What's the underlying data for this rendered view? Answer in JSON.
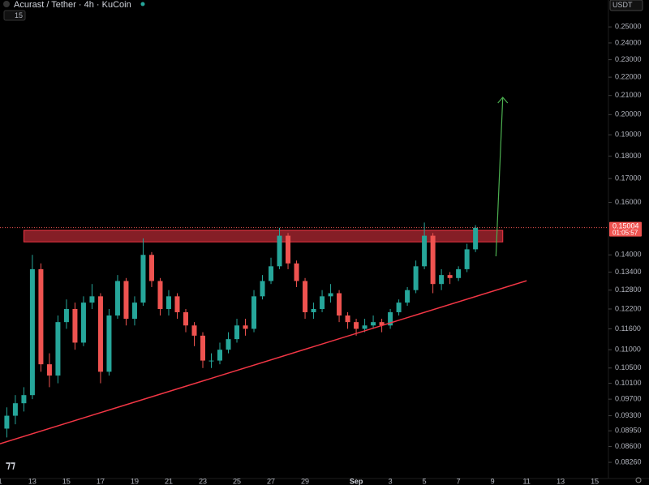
{
  "chart_data": {
    "type": "candlestick",
    "title": "Acurast / Tether · 4h · KuCoin",
    "indicator_count": "15",
    "currency_button": "USDT",
    "log_scale": true,
    "up_color": "#26a69a",
    "down_color": "#ef5350",
    "x": [
      0.5,
      1,
      1.5,
      2,
      2.5,
      3,
      3.5,
      4,
      4.5,
      5,
      5.5,
      6,
      6.5,
      7,
      7.5,
      8,
      8.5,
      9,
      9.5,
      10,
      10.5,
      11,
      11.5,
      12,
      12.5,
      13,
      13.5,
      14,
      14.5,
      15,
      15.5,
      16,
      16.5,
      17,
      17.5,
      18,
      18.5,
      19,
      19.5,
      20,
      20.5,
      21,
      21.5,
      22,
      22.5,
      23,
      23.5,
      24,
      24.5,
      25,
      25.5,
      26,
      26.5,
      27,
      27.5,
      28
    ],
    "open": [
      0.09,
      0.093,
      0.096,
      0.098,
      0.135,
      0.106,
      0.103,
      0.118,
      0.122,
      0.112,
      0.124,
      0.126,
      0.104,
      0.12,
      0.131,
      0.119,
      0.124,
      0.14,
      0.131,
      0.122,
      0.126,
      0.121,
      0.117,
      0.114,
      0.107,
      0.107,
      0.11,
      0.113,
      0.117,
      0.116,
      0.126,
      0.131,
      0.136,
      0.147,
      0.137,
      0.131,
      0.121,
      0.122,
      0.126,
      0.127,
      0.12,
      0.118,
      0.116,
      0.117,
      0.118,
      0.117,
      0.121,
      0.124,
      0.128,
      0.136,
      0.147,
      0.13,
      0.133,
      0.132,
      0.135,
      0.142
    ],
    "high": [
      0.095,
      0.098,
      0.1,
      0.14,
      0.137,
      0.109,
      0.12,
      0.125,
      0.124,
      0.126,
      0.13,
      0.127,
      0.122,
      0.133,
      0.132,
      0.126,
      0.146,
      0.141,
      0.132,
      0.128,
      0.127,
      0.122,
      0.118,
      0.115,
      0.109,
      0.112,
      0.115,
      0.119,
      0.119,
      0.128,
      0.133,
      0.139,
      0.15,
      0.148,
      0.138,
      0.132,
      0.124,
      0.128,
      0.13,
      0.128,
      0.121,
      0.119,
      0.119,
      0.12,
      0.119,
      0.122,
      0.125,
      0.129,
      0.138,
      0.152,
      0.148,
      0.135,
      0.134,
      0.136,
      0.144,
      0.151
    ],
    "low": [
      0.088,
      0.091,
      0.094,
      0.097,
      0.104,
      0.1,
      0.101,
      0.116,
      0.11,
      0.111,
      0.122,
      0.101,
      0.103,
      0.119,
      0.117,
      0.117,
      0.123,
      0.129,
      0.12,
      0.12,
      0.119,
      0.115,
      0.111,
      0.105,
      0.105,
      0.106,
      0.109,
      0.112,
      0.114,
      0.115,
      0.125,
      0.13,
      0.135,
      0.135,
      0.129,
      0.119,
      0.119,
      0.121,
      0.124,
      0.118,
      0.116,
      0.114,
      0.115,
      0.116,
      0.115,
      0.116,
      0.12,
      0.123,
      0.127,
      0.135,
      0.127,
      0.128,
      0.13,
      0.131,
      0.134,
      0.141
    ],
    "close": [
      0.093,
      0.096,
      0.098,
      0.135,
      0.106,
      0.103,
      0.118,
      0.122,
      0.112,
      0.124,
      0.126,
      0.104,
      0.12,
      0.131,
      0.119,
      0.124,
      0.14,
      0.131,
      0.122,
      0.126,
      0.121,
      0.117,
      0.114,
      0.107,
      0.107,
      0.11,
      0.113,
      0.117,
      0.116,
      0.126,
      0.131,
      0.136,
      0.147,
      0.137,
      0.131,
      0.121,
      0.122,
      0.126,
      0.127,
      0.12,
      0.118,
      0.116,
      0.117,
      0.118,
      0.117,
      0.121,
      0.124,
      0.128,
      0.136,
      0.147,
      0.13,
      0.133,
      0.132,
      0.135,
      0.142,
      0.15
    ],
    "xlim": [
      0.1,
      35.8
    ],
    "ylim": [
      0.0796,
      0.2677
    ],
    "xticks": [
      {
        "value": 0,
        "label": "11"
      },
      {
        "value": 2,
        "label": "13"
      },
      {
        "value": 4,
        "label": "15"
      },
      {
        "value": 6,
        "label": "17"
      },
      {
        "value": 8,
        "label": "19"
      },
      {
        "value": 10,
        "label": "21"
      },
      {
        "value": 12,
        "label": "23"
      },
      {
        "value": 14,
        "label": "25"
      },
      {
        "value": 16,
        "label": "27"
      },
      {
        "value": 18,
        "label": "29"
      },
      {
        "value": 21,
        "label": "Sep"
      },
      {
        "value": 23,
        "label": "3"
      },
      {
        "value": 25,
        "label": "5"
      },
      {
        "value": 27,
        "label": "7"
      },
      {
        "value": 29,
        "label": "9"
      },
      {
        "value": 31,
        "label": "11"
      },
      {
        "value": 33,
        "label": "13"
      },
      {
        "value": 35,
        "label": "15"
      }
    ],
    "yticks": [
      {
        "value": 0.25,
        "label": "0.25000"
      },
      {
        "value": 0.24,
        "label": "0.24000"
      },
      {
        "value": 0.23,
        "label": "0.23000"
      },
      {
        "value": 0.22,
        "label": "0.22000"
      },
      {
        "value": 0.21,
        "label": "0.21000"
      },
      {
        "value": 0.2,
        "label": "0.20000"
      },
      {
        "value": 0.19,
        "label": "0.19000"
      },
      {
        "value": 0.18,
        "label": "0.18000"
      },
      {
        "value": 0.17,
        "label": "0.17000"
      },
      {
        "value": 0.16,
        "label": "0.16000"
      },
      {
        "value": 0.14,
        "label": "0.14000"
      },
      {
        "value": 0.134,
        "label": "0.13400"
      },
      {
        "value": 0.128,
        "label": "0.12800"
      },
      {
        "value": 0.122,
        "label": "0.12200"
      },
      {
        "value": 0.116,
        "label": "0.11600"
      },
      {
        "value": 0.11,
        "label": "0.11000"
      },
      {
        "value": 0.105,
        "label": "0.10500"
      },
      {
        "value": 0.101,
        "label": "0.10100"
      },
      {
        "value": 0.097,
        "label": "0.09700"
      },
      {
        "value": 0.093,
        "label": "0.09300"
      },
      {
        "value": 0.0895,
        "label": "0.08950"
      },
      {
        "value": 0.086,
        "label": "0.08600"
      },
      {
        "value": 0.0826,
        "label": "0.08260"
      }
    ],
    "last_price": 0.15004,
    "countdown": "01:05:57",
    "resistance_zone": {
      "x": [
        1.5,
        29.6
      ],
      "y": [
        0.1447,
        0.149
      ],
      "color": "#f23645"
    },
    "trendline": {
      "x": [
        0.1,
        31
      ],
      "y": [
        0.0866,
        0.1311
      ],
      "color": "#f23645"
    },
    "arrow": {
      "x": [
        29.2,
        29.6
      ],
      "y": [
        0.1395,
        0.209
      ],
      "color": "#4caf50"
    }
  }
}
